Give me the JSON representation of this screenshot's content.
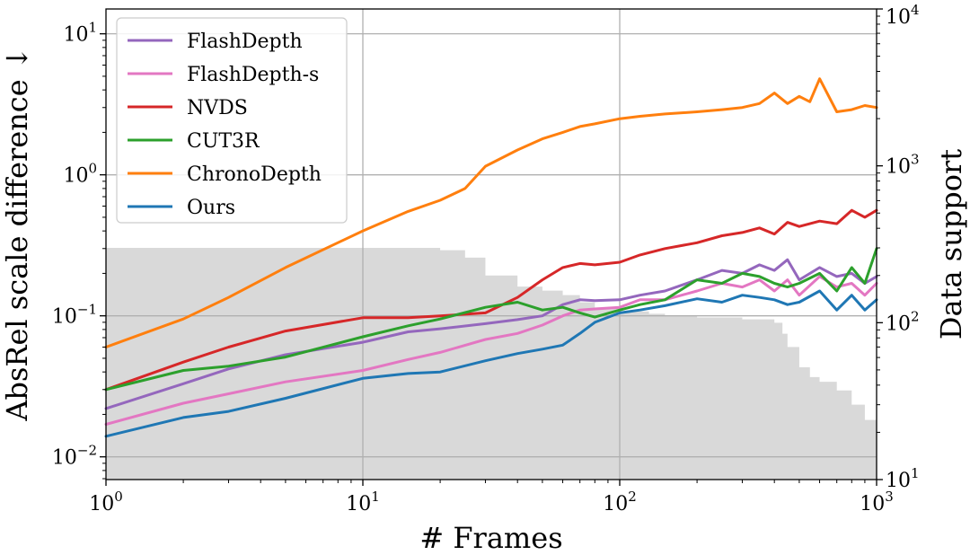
{
  "chart_data": {
    "type": "line",
    "xscale": "log",
    "yscale": "log",
    "xlim": [
      1,
      1000
    ],
    "ylim": [
      0.0069,
      15
    ],
    "y2lim": [
      10,
      10000
    ],
    "xlabel": "# Frames",
    "ylabel": "AbsRel scale difference ↓",
    "y2label": "Data support",
    "grid": true,
    "legend_position": "upper-left",
    "x_ticks": [
      {
        "value": 1,
        "base": "10",
        "exp": "0"
      },
      {
        "value": 10,
        "base": "10",
        "exp": "1"
      },
      {
        "value": 100,
        "base": "10",
        "exp": "2"
      },
      {
        "value": 1000,
        "base": "10",
        "exp": "3"
      }
    ],
    "y_ticks": [
      {
        "value": 0.01,
        "base": "10",
        "exp": "−2"
      },
      {
        "value": 0.1,
        "base": "10",
        "exp": "−1"
      },
      {
        "value": 1,
        "base": "10",
        "exp": "0"
      },
      {
        "value": 10,
        "base": "10",
        "exp": "1"
      }
    ],
    "y2_ticks": [
      {
        "value": 10,
        "base": "10",
        "exp": "1"
      },
      {
        "value": 100,
        "base": "10",
        "exp": "2"
      },
      {
        "value": 1000,
        "base": "10",
        "exp": "3"
      },
      {
        "value": 10000,
        "base": "10",
        "exp": "4"
      }
    ],
    "support": {
      "name": "Data support",
      "color": "#d9d9d9",
      "x": [
        1,
        2,
        3,
        5,
        10,
        15,
        20,
        25,
        30,
        40,
        50,
        60,
        70,
        80,
        100,
        130,
        150,
        200,
        300,
        400,
        430,
        450,
        500,
        550,
        600,
        700,
        800,
        900,
        1000
      ],
      "values": [
        300,
        300,
        300,
        300,
        300,
        300,
        290,
        260,
        200,
        170,
        160,
        150,
        135,
        125,
        118,
        114,
        110,
        108,
        105,
        100,
        85,
        70,
        52,
        45,
        42,
        37,
        30,
        24,
        20
      ]
    },
    "series": [
      {
        "name": "FlashDepth",
        "color": "#9467bd",
        "x": [
          1,
          2,
          3,
          5,
          10,
          15,
          20,
          30,
          40,
          50,
          60,
          70,
          80,
          100,
          120,
          150,
          200,
          250,
          300,
          350,
          400,
          450,
          500,
          600,
          700,
          800,
          900,
          1000
        ],
        "values": [
          0.022,
          0.033,
          0.042,
          0.053,
          0.065,
          0.077,
          0.081,
          0.088,
          0.094,
          0.1,
          0.12,
          0.13,
          0.128,
          0.13,
          0.14,
          0.15,
          0.18,
          0.21,
          0.2,
          0.23,
          0.21,
          0.25,
          0.18,
          0.22,
          0.19,
          0.2,
          0.17,
          0.19
        ]
      },
      {
        "name": "FlashDepth-s",
        "color": "#e377c2",
        "x": [
          1,
          2,
          3,
          5,
          10,
          15,
          20,
          30,
          40,
          50,
          60,
          70,
          80,
          100,
          120,
          150,
          200,
          250,
          300,
          350,
          400,
          450,
          500,
          600,
          700,
          800,
          900,
          1000
        ],
        "values": [
          0.017,
          0.024,
          0.028,
          0.034,
          0.041,
          0.049,
          0.055,
          0.068,
          0.075,
          0.086,
          0.1,
          0.11,
          0.112,
          0.115,
          0.13,
          0.13,
          0.15,
          0.17,
          0.16,
          0.18,
          0.15,
          0.18,
          0.14,
          0.19,
          0.16,
          0.17,
          0.14,
          0.17
        ]
      },
      {
        "name": "NVDS",
        "color": "#d62728",
        "x": [
          1,
          2,
          3,
          5,
          10,
          15,
          20,
          30,
          40,
          50,
          60,
          70,
          80,
          100,
          120,
          150,
          200,
          250,
          300,
          350,
          400,
          450,
          500,
          600,
          700,
          800,
          900,
          1000
        ],
        "values": [
          0.03,
          0.047,
          0.06,
          0.078,
          0.097,
          0.097,
          0.1,
          0.105,
          0.135,
          0.18,
          0.22,
          0.235,
          0.23,
          0.24,
          0.27,
          0.3,
          0.33,
          0.37,
          0.39,
          0.42,
          0.38,
          0.46,
          0.43,
          0.47,
          0.45,
          0.56,
          0.5,
          0.56
        ]
      },
      {
        "name": "CUT3R",
        "color": "#2ca02c",
        "x": [
          1,
          2,
          3,
          5,
          10,
          15,
          20,
          30,
          40,
          50,
          60,
          70,
          80,
          100,
          120,
          150,
          200,
          250,
          300,
          350,
          400,
          450,
          500,
          600,
          700,
          800,
          900,
          1000
        ],
        "values": [
          0.03,
          0.041,
          0.044,
          0.051,
          0.071,
          0.085,
          0.095,
          0.115,
          0.125,
          0.11,
          0.115,
          0.105,
          0.098,
          0.11,
          0.12,
          0.13,
          0.18,
          0.17,
          0.2,
          0.19,
          0.17,
          0.16,
          0.17,
          0.2,
          0.15,
          0.22,
          0.17,
          0.3
        ]
      },
      {
        "name": "ChronoDepth",
        "color": "#ff7f0e",
        "x": [
          1,
          2,
          3,
          5,
          10,
          15,
          20,
          25,
          30,
          40,
          50,
          60,
          70,
          80,
          100,
          120,
          150,
          200,
          250,
          300,
          350,
          400,
          450,
          500,
          550,
          600,
          700,
          800,
          900,
          1000
        ],
        "values": [
          0.06,
          0.095,
          0.135,
          0.22,
          0.4,
          0.55,
          0.66,
          0.8,
          1.15,
          1.5,
          1.8,
          2.0,
          2.2,
          2.3,
          2.5,
          2.6,
          2.7,
          2.8,
          2.9,
          3.0,
          3.2,
          3.8,
          3.2,
          3.6,
          3.3,
          4.8,
          2.8,
          2.9,
          3.1,
          3.0
        ]
      },
      {
        "name": "Ours",
        "color": "#1f77b4",
        "x": [
          1,
          2,
          3,
          5,
          10,
          15,
          20,
          30,
          40,
          50,
          60,
          70,
          80,
          100,
          120,
          150,
          200,
          250,
          300,
          350,
          400,
          450,
          500,
          600,
          700,
          800,
          900,
          1000
        ],
        "values": [
          0.014,
          0.019,
          0.021,
          0.026,
          0.036,
          0.039,
          0.04,
          0.048,
          0.054,
          0.058,
          0.062,
          0.075,
          0.09,
          0.105,
          0.11,
          0.118,
          0.132,
          0.125,
          0.14,
          0.135,
          0.13,
          0.12,
          0.125,
          0.15,
          0.11,
          0.14,
          0.11,
          0.13
        ]
      }
    ]
  }
}
